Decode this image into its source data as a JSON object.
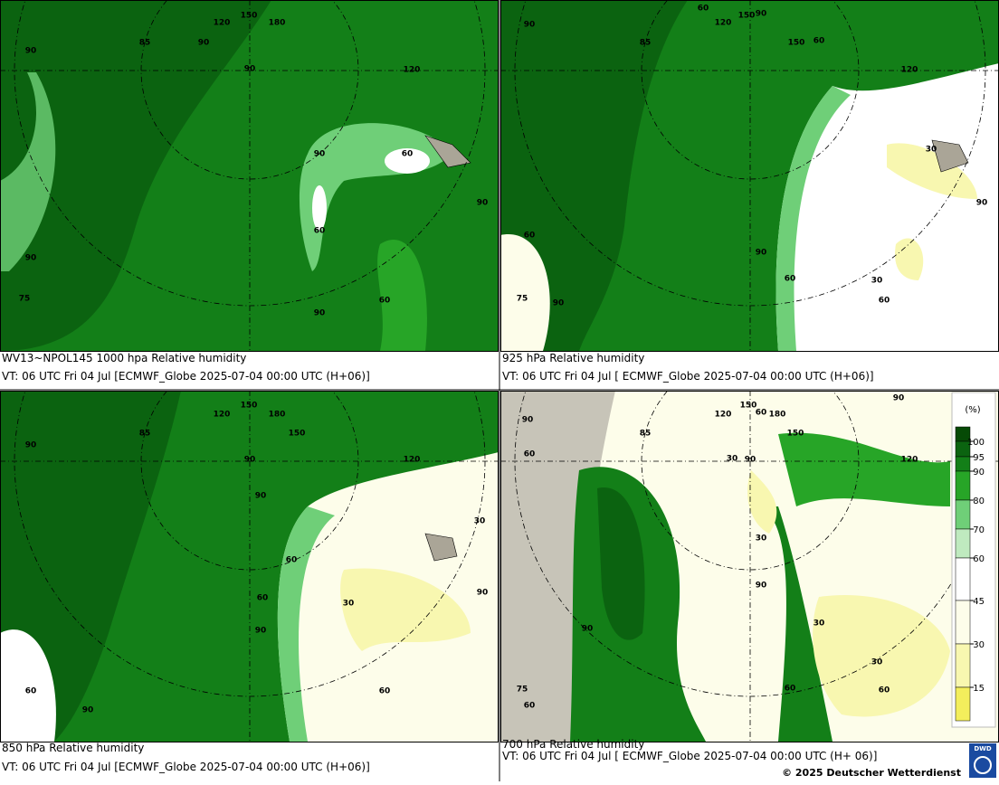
{
  "panels": [
    {
      "caption": [
        "WV13~NPOL145 1000 hpa Relative humidity",
        "VT: 06 UTC Fri  04 Jul [ECMWF_Globe 2025-07-04 00:00 UTC  (H+06)]"
      ],
      "labels": [
        "90",
        "85",
        "90",
        "120",
        "150",
        "180",
        "90",
        "120",
        "90",
        "60",
        "60",
        "90",
        "75",
        "90",
        "60",
        "90"
      ]
    },
    {
      "caption": [
        "925 hPa Relative humidity",
        "VT: 06 UTC Fri  04 Jul [ ECMWF_Globe 2025-07-04 00:00 UTC  (H+06)]"
      ],
      "labels": [
        "90",
        "60",
        "120",
        "150",
        "90",
        "60",
        "150",
        "85",
        "120",
        "30",
        "90",
        "60",
        "90",
        "60",
        "30",
        "75",
        "90",
        "60"
      ]
    },
    {
      "caption": [
        "850 hPa  Relative humidity",
        "VT: 06 UTC Fri  04 Jul [ECMWF_Globe 2025-07-04 00:00 UTC  (H+06)]"
      ],
      "labels": [
        "90",
        "120",
        "150",
        "180",
        "150",
        "85",
        "90",
        "120",
        "90",
        "30",
        "60",
        "60",
        "30",
        "90",
        "90",
        "60",
        "90",
        "60"
      ]
    },
    {
      "caption": [
        "700 hPa Relative humidity",
        "VT: 06 UTC Fri  04 Jul [ ECMWF_Globe 2025-07-04 00:00 UTC  (H+ 06)]"
      ],
      "labels": [
        "90",
        "90",
        "120",
        "150",
        "60",
        "180",
        "150",
        "85",
        "60",
        "30",
        "90",
        "120",
        "30",
        "90",
        "30",
        "90",
        "30",
        "60",
        "75",
        "60",
        "60"
      ]
    }
  ],
  "legend": {
    "unit": "(%)",
    "ticks": [
      100,
      95,
      90,
      80,
      70,
      60,
      45,
      30,
      15
    ],
    "colors": [
      "#064a06",
      "#0b6310",
      "#137f18",
      "#27a527",
      "#6fcf78",
      "#bfeabf",
      "#ffffff",
      "#fdfdea",
      "#f8f7b0",
      "#f3ee5c"
    ]
  },
  "copyright": "© 2025 Deutscher Wetterdienst",
  "logo": "DWD"
}
